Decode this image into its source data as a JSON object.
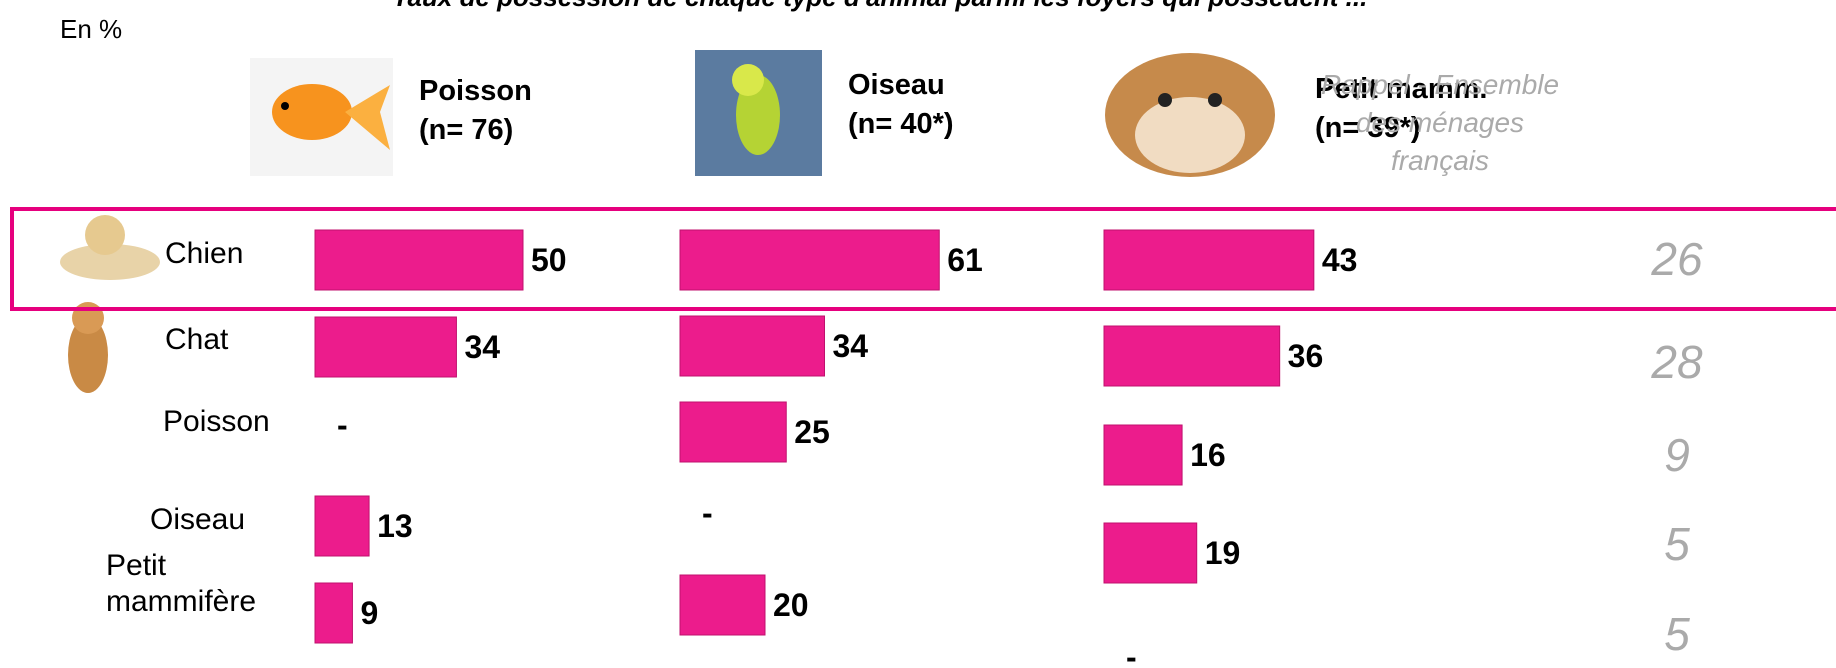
{
  "title": "Taux de possession de chaque type d'animal parmi les foyers qui possèdent ...",
  "unit_label": "En %",
  "empty_label": "-",
  "rows": [
    "Chien",
    "Chat",
    "Poisson",
    "Oiseau",
    "Petit mammifère"
  ],
  "chart_data": [
    {
      "type": "bar",
      "title": "Poisson",
      "subtitle": "(n= 76)",
      "color": "#ec1c8c",
      "values": [
        50,
        34,
        null,
        13,
        9
      ]
    },
    {
      "type": "bar",
      "title": "Oiseau",
      "subtitle": "(n= 40*)",
      "color": "#ec1c8c",
      "values": [
        61,
        34,
        25,
        null,
        20
      ]
    },
    {
      "type": "bar",
      "title": "Petit mamm.",
      "subtitle": "(n= 39*)",
      "color": "#ec1c8c",
      "values": [
        43,
        36,
        16,
        19,
        null
      ]
    }
  ],
  "reference": {
    "title": "Rappel - Ensemble des ménages français",
    "values": [
      26,
      28,
      9,
      5,
      5
    ]
  }
}
